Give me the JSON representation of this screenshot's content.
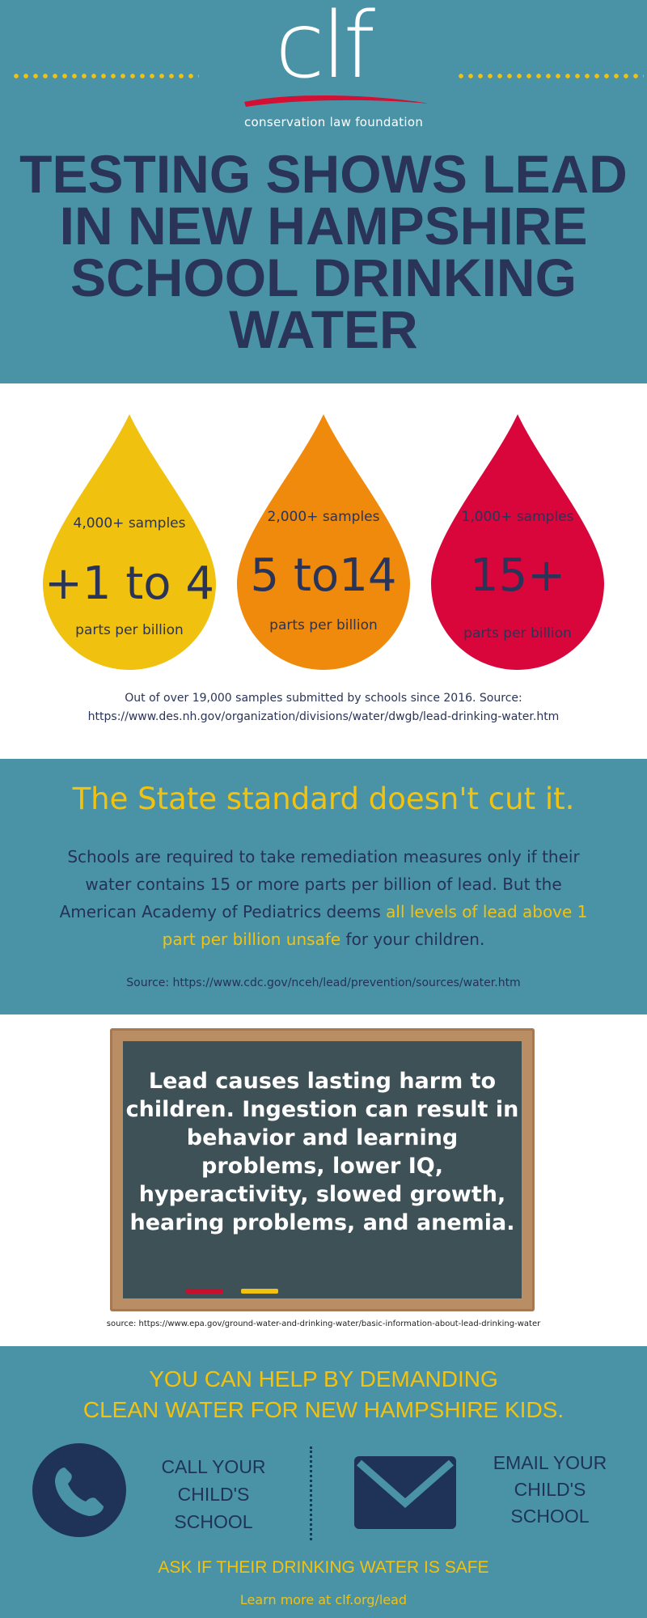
{
  "header": {
    "logo": "clf",
    "org_name": "conservation law foundation",
    "headline": "TESTING SHOWS LEAD IN NEW HAMPSHIRE SCHOOL DRINKING WATER"
  },
  "drops": [
    {
      "samples": "4,000+ samples",
      "range": "+1 to 4",
      "unit": "parts per billion",
      "color": "#f0c10e"
    },
    {
      "samples": "2,000+ samples",
      "range": "5 to14",
      "unit": "parts per billion",
      "color": "#ef8a0c"
    },
    {
      "samples": "1,000+ samples",
      "range": "15+",
      "unit": "parts per billion",
      "color": "#d8063b"
    }
  ],
  "drops_caption": "Out of over 19,000 samples submitted by schools since 2016. Source: https://www.des.nh.gov/organization/divisions/water/dwgb/lead-drinking-water.htm",
  "standard": {
    "title": "The State standard doesn't cut it.",
    "body_1": "Schools are required to take remediation measures only if their water contains 15 or more parts per billion of lead. But the American Academy of Pediatrics deems ",
    "highlight": "all levels of lead above 1 part per billion unsafe",
    "body_2": " for your children.",
    "source": "Source: https://www.cdc.gov/nceh/lead/prevention/sources/water.htm"
  },
  "board": {
    "text": "Lead causes lasting harm to children. Ingestion can result in behavior and learning problems, lower IQ, hyperactivity, slowed growth, hearing problems, and anemia.",
    "source": "source: https://www.epa.gov/ground-water-and-drinking-water/basic-information-about-lead-drinking-water"
  },
  "help": {
    "title_line1": "YOU CAN HELP BY DEMANDING",
    "title_line2": "CLEAN WATER FOR NEW HAMPSHIRE KIDS.",
    "call": "CALL YOUR CHILD'S SCHOOL",
    "email": "EMAIL YOUR CHILD'S SCHOOL",
    "ask": "ASK IF THEIR DRINKING WATER IS SAFE",
    "learn_more": "Learn more at clf.org/lead"
  },
  "colors": {
    "teal": "#4a93a6",
    "navy": "#2a3458",
    "yellow": "#f2c20f"
  }
}
